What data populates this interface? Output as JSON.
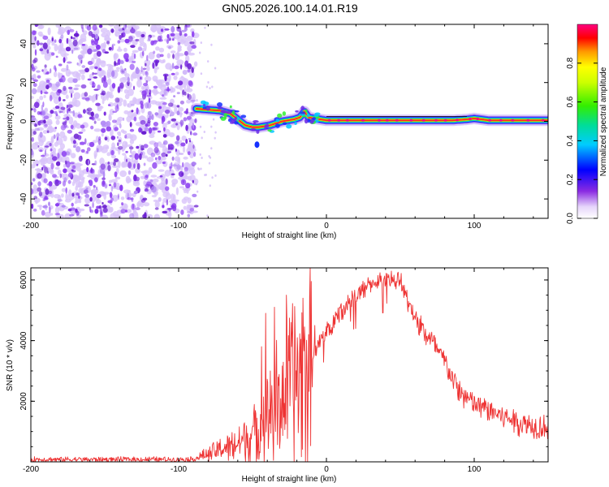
{
  "title": "GN05.2026.100.14.01.R19",
  "chart_data": [
    {
      "type": "heatmap",
      "name": "spectrogram",
      "xlabel": "Height of straight line (km)",
      "ylabel": "Frequency (Hz)",
      "xlim": [
        -200,
        150
      ],
      "ylim": [
        -50,
        50
      ],
      "xticks": [
        -200,
        -100,
        0,
        100
      ],
      "yticks": [
        -40,
        -20,
        0,
        20,
        40
      ],
      "noise_region_x": [
        -200,
        -88
      ],
      "ridge": {
        "x": [
          -88,
          -80,
          -72,
          -65,
          -60,
          -55,
          -50,
          -46,
          -42,
          -38,
          -34,
          -30,
          -26,
          -22,
          -18,
          -15,
          -12,
          -8,
          -4,
          0,
          10,
          30,
          50,
          70,
          85,
          95,
          100,
          110,
          120,
          130,
          140,
          150
        ],
        "y": [
          6.5,
          6,
          5.5,
          4,
          1,
          -2,
          -3,
          -3,
          -2.5,
          -2,
          -1,
          0,
          0.5,
          1,
          2,
          5,
          2,
          1.5,
          1,
          0.5,
          0.5,
          0.5,
          0.5,
          0.5,
          0.5,
          1,
          1.5,
          0.5,
          0.5,
          0.5,
          0.5,
          0.5
        ]
      },
      "colorbar": {
        "label": "Normalized spectral amplitude",
        "range": [
          0,
          1
        ],
        "ticks": [
          "0.0",
          "0.2",
          "0.4",
          "0.6",
          "0.8"
        ]
      }
    },
    {
      "type": "line",
      "name": "snr",
      "xlabel": "Height of straight line (km)",
      "ylabel": "SNR (10 * v/v)",
      "xlim": [
        -200,
        150
      ],
      "ylim": [
        0,
        6400
      ],
      "xticks": [
        -200,
        -100,
        0,
        100
      ],
      "yticks": [
        2000,
        4000,
        6000
      ],
      "color": "#ee3333",
      "x": [
        -200,
        -150,
        -100,
        -90,
        -80,
        -70,
        -60,
        -50,
        -40,
        -30,
        -20,
        -10,
        0,
        10,
        20,
        30,
        40,
        50,
        60,
        70,
        80,
        90,
        100,
        110,
        120,
        130,
        140,
        150
      ],
      "y": [
        80,
        80,
        80,
        90,
        250,
        450,
        600,
        900,
        1500,
        2200,
        2900,
        3500,
        4300,
        5000,
        5500,
        5850,
        6050,
        5950,
        4700,
        4050,
        3300,
        2300,
        1900,
        1700,
        1500,
        1300,
        1200,
        1150
      ],
      "spikes": [
        {
          "x": -44,
          "y": 3800
        },
        {
          "x": -41,
          "y": 4900
        },
        {
          "x": -38,
          "y": 3000
        },
        {
          "x": -35,
          "y": 5100
        },
        {
          "x": -27,
          "y": 5500
        },
        {
          "x": -24,
          "y": 4600
        },
        {
          "x": -16,
          "y": 5400
        },
        {
          "x": -12,
          "y": 4200
        },
        {
          "x": -8,
          "y": 4500
        }
      ]
    }
  ]
}
